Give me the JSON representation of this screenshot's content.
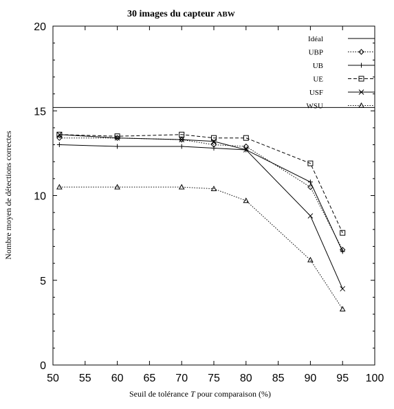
{
  "chart_data": {
    "type": "line",
    "title": "30 images du capteur ABW",
    "title_main": "30 images du capteur ",
    "title_sc": "ABW",
    "xlabel_prefix": "Seuil de tolérance ",
    "xlabel_var": "T",
    "xlabel_suffix": " pour comparaison (%)",
    "ylabel": "Nombre moyen de détections correctes",
    "xlim": [
      50,
      100
    ],
    "ylim": [
      0,
      20
    ],
    "xticks": [
      "50",
      "55",
      "60",
      "65",
      "70",
      "75",
      "80",
      "85",
      "90",
      "95",
      "100"
    ],
    "yticks": [
      "0",
      "5",
      "10",
      "15",
      "20"
    ],
    "grid": false,
    "legend_position": "top-right",
    "x": [
      51,
      60,
      70,
      75,
      80,
      90,
      95
    ],
    "series": [
      {
        "name": "Idéal",
        "style": "solid",
        "marker": "none",
        "constant": 15.2
      },
      {
        "name": "UBP",
        "style": "dotted",
        "marker": "diamond",
        "values": [
          13.4,
          13.4,
          13.3,
          13.0,
          12.9,
          10.5,
          6.8
        ]
      },
      {
        "name": "UB",
        "style": "solid",
        "marker": "plus",
        "values": [
          13.0,
          12.9,
          12.9,
          12.8,
          12.7,
          10.8,
          6.7
        ]
      },
      {
        "name": "UE",
        "style": "dashed",
        "marker": "square",
        "values": [
          13.6,
          13.5,
          13.6,
          13.4,
          13.4,
          11.9,
          7.8
        ]
      },
      {
        "name": "USF",
        "style": "solid",
        "marker": "x",
        "values": [
          13.6,
          13.4,
          13.3,
          13.2,
          12.7,
          8.8,
          4.5
        ]
      },
      {
        "name": "WSU",
        "style": "dotted",
        "marker": "triangle",
        "values": [
          10.5,
          10.5,
          10.5,
          10.4,
          9.7,
          6.2,
          3.3
        ]
      }
    ]
  }
}
